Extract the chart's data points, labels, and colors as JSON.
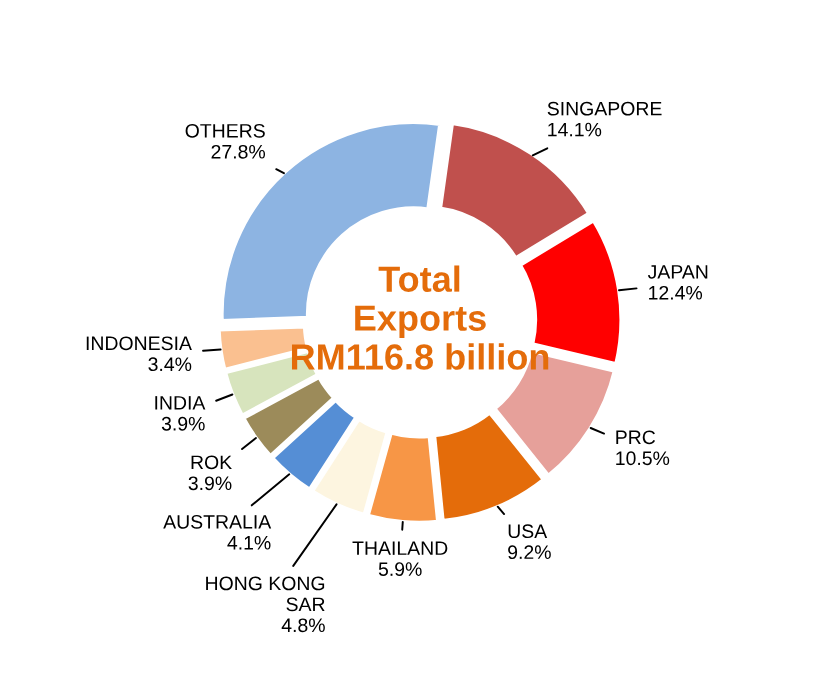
{
  "chart_data": {
    "type": "donut",
    "categories": [
      "SINGAPORE",
      "JAPAN",
      "PRC",
      "USA",
      "THAILAND",
      "HONG KONG\nSAR",
      "AUSTRALIA",
      "ROK",
      "INDIA",
      "INDONESIA",
      "OTHERS"
    ],
    "values": [
      14.1,
      12.4,
      10.5,
      9.2,
      5.9,
      4.8,
      4.1,
      3.9,
      3.9,
      3.4,
      27.8
    ],
    "value_labels": [
      "14.1%",
      "12.4%",
      "10.5%",
      "9.2%",
      "5.9%",
      "4.8%",
      "4.1%",
      "3.9%",
      "3.9%",
      "3.4%",
      "27.8%"
    ],
    "colors": [
      "#c0504d",
      "#ff0000",
      "#e6a09a",
      "#e46c0a",
      "#f79646",
      "#fdf5e0",
      "#558ed5",
      "#9c8b5a",
      "#d7e4bd",
      "#fac090",
      "#8db4e2"
    ],
    "annotations": [
      "Total\nExports\nRM116.8 billion"
    ],
    "legend": false
  }
}
